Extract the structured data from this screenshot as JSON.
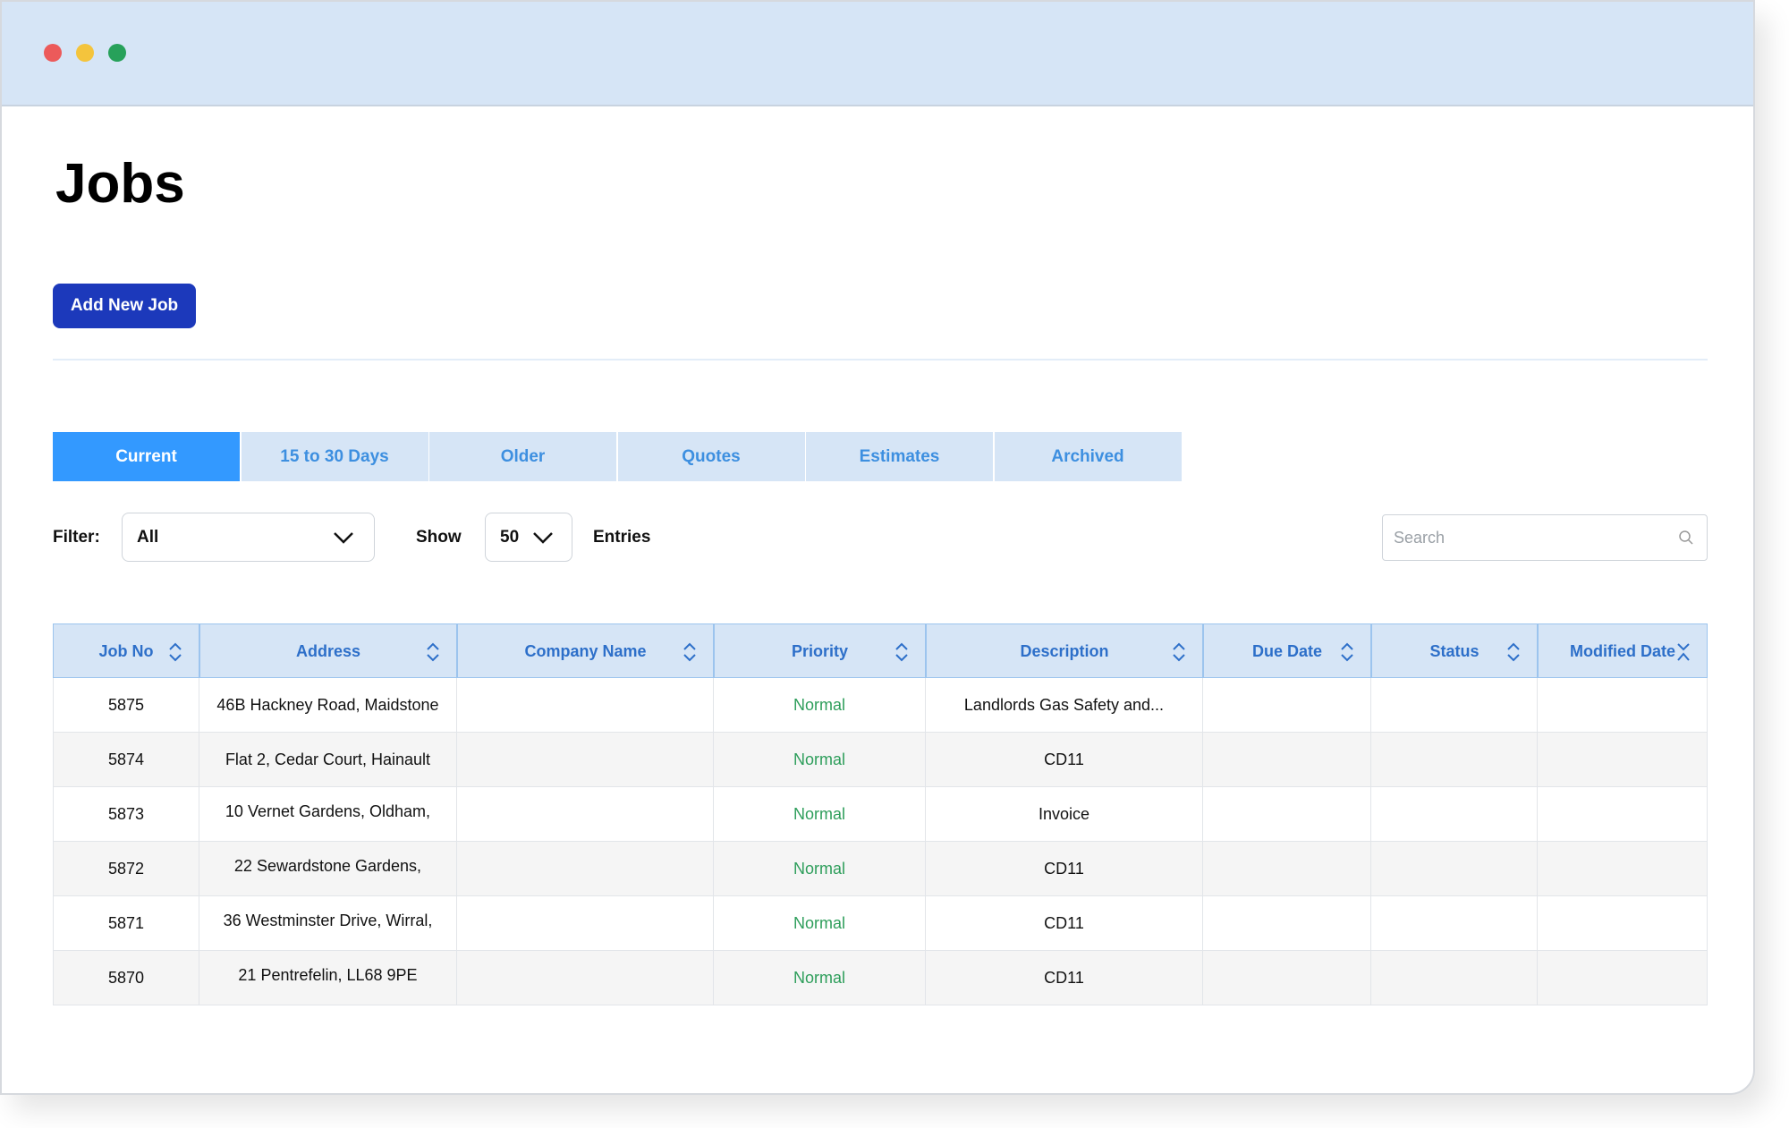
{
  "header": {
    "title": "Jobs"
  },
  "toolbar": {
    "button": "Add New Job"
  },
  "tabs": [
    "Current",
    "15 to 30 Days",
    "Older",
    "Quotes",
    "Estimates",
    "Archived"
  ],
  "controls": {
    "filter_label": "Filter:",
    "filter_value": "All",
    "show_label": "Show",
    "show_value": "50",
    "entries_label": "Entries",
    "search_placeholder": "Search"
  },
  "table": {
    "columns": [
      "Job No",
      "Address",
      "Company Name",
      "Priority",
      "Description",
      "Due Date",
      "Status",
      "Modified Date"
    ],
    "rows": [
      {
        "job_no": 5875,
        "address": "46B Hackney Road, Maidstone",
        "priority": "Normal",
        "description": "Landlords Gas Safety and..."
      },
      {
        "job_no": 5874,
        "address": "Flat 2, Cedar Court, Hainault",
        "priority": "Normal",
        "description": "CD11"
      },
      {
        "job_no": 5873,
        "address": "10 Vernet Gardens, Oldham,",
        "priority": "Normal",
        "description": "Invoice"
      },
      {
        "job_no": 5872,
        "address": "22 Sewardstone Gardens,",
        "priority": "Normal",
        "description": "CD11"
      },
      {
        "job_no": 5871,
        "address": "36 Westminster Drive, Wirral,",
        "priority": "Normal",
        "description": "CD11"
      },
      {
        "job_no": 5870,
        "address": "21 Pentrefelin, LL68 9PE",
        "priority": "Normal",
        "description": "CD11"
      }
    ]
  }
}
